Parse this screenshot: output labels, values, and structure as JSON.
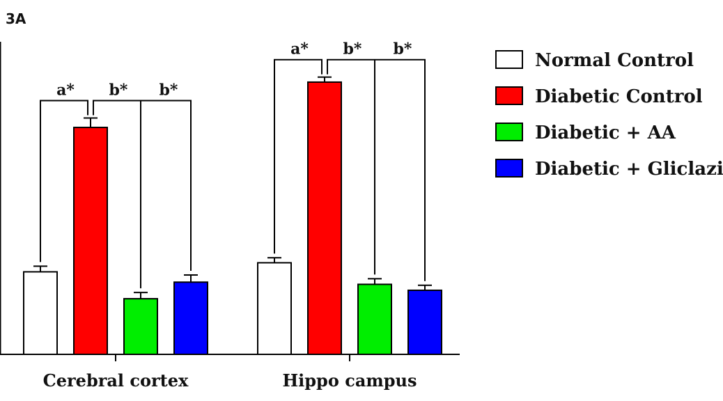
{
  "chart_data": {
    "type": "bar",
    "panel_label": "3A",
    "title": "",
    "xlabel": "",
    "ylabel": "",
    "categories": [
      "Cerebral cortex",
      "Hippo campus"
    ],
    "ylim": [
      0,
      100
    ],
    "series": [
      {
        "name": "Normal Control",
        "color": "#ffffff",
        "values": [
          26.4,
          29.3
        ],
        "errors": [
          1.8,
          1.6
        ]
      },
      {
        "name": "Diabetic Control",
        "color": "#ff0000",
        "values": [
          72.6,
          87.1
        ],
        "errors": [
          3.0,
          1.6
        ]
      },
      {
        "name": "Diabetic + AA",
        "color": "#00ee00",
        "values": [
          17.8,
          22.4
        ],
        "errors": [
          2.0,
          1.8
        ]
      },
      {
        "name": "Diabetic + Gliclazide",
        "color": "#0000ff",
        "values": [
          23.1,
          20.5
        ],
        "errors": [
          2.3,
          1.6
        ]
      }
    ],
    "significance": [
      {
        "group": 0,
        "labels": [
          "a*",
          "b*",
          "b*"
        ]
      },
      {
        "group": 1,
        "labels": [
          "a*",
          "b*",
          "b*"
        ]
      }
    ],
    "grid": false,
    "legend_position": "right"
  }
}
